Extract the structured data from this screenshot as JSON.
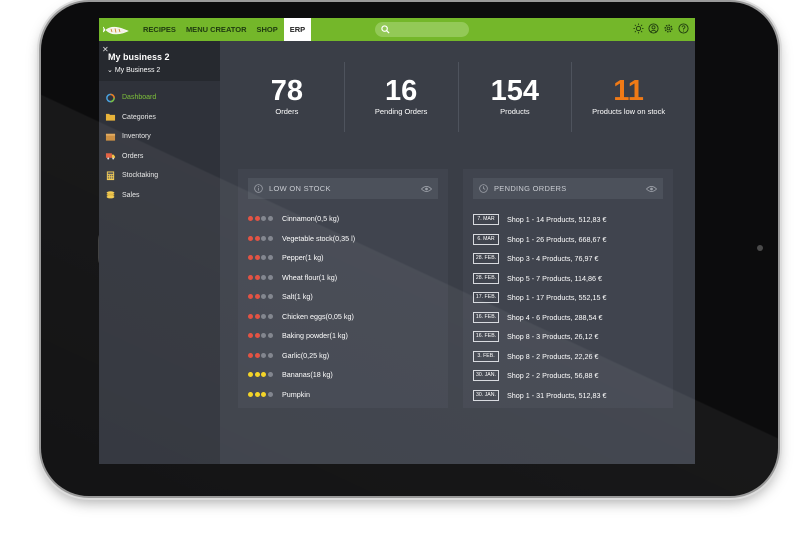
{
  "nav": {
    "items": [
      {
        "label": "RECIPES",
        "active": false
      },
      {
        "label": "MENU CREATOR",
        "active": false
      },
      {
        "label": "SHOP",
        "active": false
      },
      {
        "label": "ERP",
        "active": true
      }
    ],
    "icons": [
      "sun-icon",
      "user-icon",
      "gear-icon",
      "help-icon"
    ]
  },
  "business": {
    "name": "My  business 2",
    "selector": "My Business 2"
  },
  "sidebar": {
    "items": [
      {
        "label": "Dashboard",
        "icon": "dashboard-icon",
        "active": true
      },
      {
        "label": "Categories",
        "icon": "folder-icon",
        "active": false
      },
      {
        "label": "Inventory",
        "icon": "inventory-icon",
        "active": false
      },
      {
        "label": "Orders",
        "icon": "truck-icon",
        "active": false
      },
      {
        "label": "Stocktaking",
        "icon": "calculator-icon",
        "active": false
      },
      {
        "label": "Sales",
        "icon": "coins-icon",
        "active": false
      }
    ]
  },
  "stats": [
    {
      "value": "78",
      "label": "Orders",
      "warn": false
    },
    {
      "value": "16",
      "label": "Pending Orders",
      "warn": false
    },
    {
      "value": "154",
      "label": "Products",
      "warn": false
    },
    {
      "value": "11",
      "label": "Products low on stock",
      "warn": true
    }
  ],
  "low_stock": {
    "title": "LOW ON STOCK",
    "items": [
      {
        "name": "Cinnamon(0,5 kg)",
        "level": "red"
      },
      {
        "name": "Vegetable stock(0,35 l)",
        "level": "red"
      },
      {
        "name": "Pepper(1 kg)",
        "level": "red"
      },
      {
        "name": "Wheat flour(1 kg)",
        "level": "red"
      },
      {
        "name": "Salt(1 kg)",
        "level": "red"
      },
      {
        "name": "Chicken eggs(0,05 kg)",
        "level": "red"
      },
      {
        "name": "Baking powder(1 kg)",
        "level": "red"
      },
      {
        "name": "Garlic(0,25 kg)",
        "level": "red"
      },
      {
        "name": "Bananas(18 kg)",
        "level": "yellow"
      },
      {
        "name": "Pumpkin",
        "level": "yellow"
      }
    ]
  },
  "pending_orders": {
    "title": "PENDING ORDERS",
    "items": [
      {
        "date": "7. MAR",
        "text": "Shop 1 - 14 Products, 512,83 €"
      },
      {
        "date": "6. MAR",
        "text": "Shop 1 - 26 Products, 668,67 €"
      },
      {
        "date": "28. FEB.",
        "text": "Shop 3 - 4 Products, 76,97 €"
      },
      {
        "date": "28. FEB.",
        "text": "Shop 5 - 7 Products, 114,86 €"
      },
      {
        "date": "17. FEB.",
        "text": "Shop 1 - 17 Products, 552,15 €"
      },
      {
        "date": "16. FEB.",
        "text": "Shop 4 - 6 Products, 288,54 €"
      },
      {
        "date": "16. FEB.",
        "text": "Shop 8 - 3 Products, 26,12 €"
      },
      {
        "date": "3. FEB.",
        "text": "Shop 8 - 2 Products, 22,26 €"
      },
      {
        "date": "30. JAN.",
        "text": "Shop 2 - 2 Products, 56,88 €"
      },
      {
        "date": "30. JAN.",
        "text": "Shop 1 - 31 Products, 512,83 €"
      }
    ]
  },
  "colors": {
    "accent": "#74b72a",
    "warn": "#f07a16",
    "dot_red": "#e24b3b",
    "dot_yellow": "#f3d21f",
    "dot_empty": "#7d818a"
  }
}
